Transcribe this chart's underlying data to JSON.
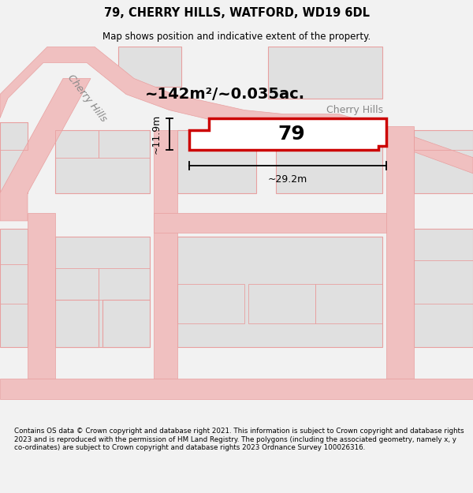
{
  "title": "79, CHERRY HILLS, WATFORD, WD19 6DL",
  "subtitle": "Map shows position and indicative extent of the property.",
  "area_label": "~142m²/~0.035ac.",
  "number_label": "79",
  "width_label": "~29.2m",
  "height_label": "~11.9m",
  "footer": "Contains OS data © Crown copyright and database right 2021. This information is subject to Crown copyright and database rights 2023 and is reproduced with the permission of HM Land Registry. The polygons (including the associated geometry, namely x, y co-ordinates) are subject to Crown copyright and database rights 2023 Ordnance Survey 100026316.",
  "bg_color": "#f2f2f2",
  "map_bg": "#ffffff",
  "road_color": "#f0c0c0",
  "road_edge": "#e8a0a0",
  "highlight_color": "#cc0000",
  "block_fill": "#e0e0e0",
  "block_edge": "#e8a0a0",
  "street_label_color": "#888888",
  "street_name_road": "Cherry Hills",
  "street_name_area": "Cherry Hills"
}
